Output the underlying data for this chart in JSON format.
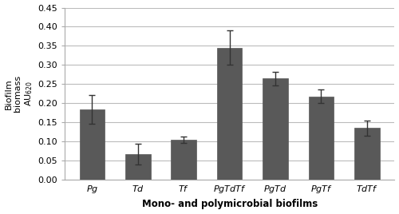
{
  "categories": [
    "Pg",
    "Td",
    "Tf",
    "PgTdTf",
    "PgTd",
    "PgTf",
    "TdTf"
  ],
  "values": [
    0.184,
    0.067,
    0.105,
    0.345,
    0.265,
    0.218,
    0.135
  ],
  "errors": [
    0.038,
    0.027,
    0.008,
    0.045,
    0.018,
    0.018,
    0.02
  ],
  "bar_color": "#595959",
  "bar_edgecolor": "#595959",
  "bar_width": 0.55,
  "ylabel": "Biofilm\nbiomass\nAU$_{620}$",
  "xlabel": "Mono- and polymicrobial biofilms",
  "ylim": [
    0.0,
    0.45
  ],
  "yticks": [
    0.0,
    0.05,
    0.1,
    0.15,
    0.2,
    0.25,
    0.3,
    0.35,
    0.4,
    0.45
  ],
  "background_color": "#ffffff",
  "grid_color": "#bbbbbb",
  "error_cap_size": 3,
  "error_color": "#333333",
  "error_linewidth": 1.0,
  "tick_labelsize": 8,
  "xlabel_fontsize": 8.5,
  "ylabel_fontsize": 8
}
